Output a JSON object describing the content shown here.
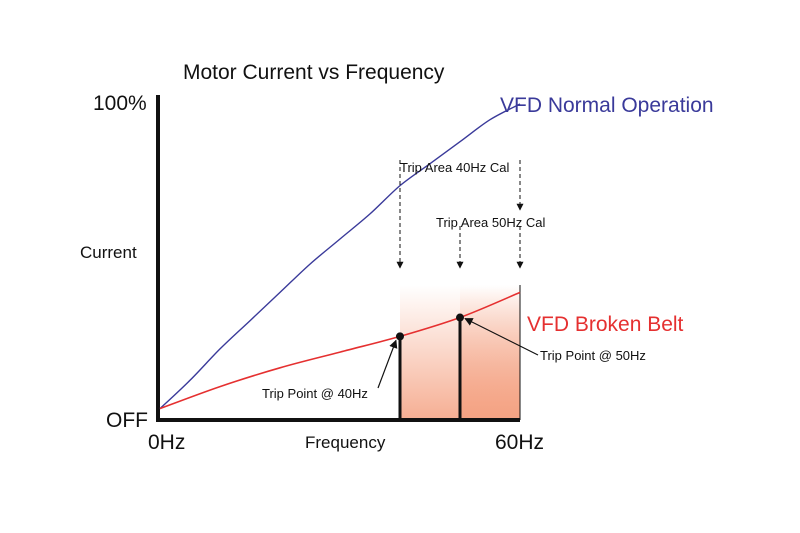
{
  "chart_data": {
    "type": "line",
    "title": "Motor Current vs Frequency",
    "xlabel": "Frequency",
    "ylabel": "Current",
    "x_ticks": [
      "0Hz",
      "60Hz"
    ],
    "y_ticks": [
      "OFF",
      "100%"
    ],
    "xlim": [
      0,
      60
    ],
    "ylim": [
      0,
      100
    ],
    "grid": false,
    "legend": "inline labels at line ends",
    "series": [
      {
        "name": "VFD Normal Operation",
        "color": "#3a3a9a",
        "x": [
          0,
          5,
          10,
          15,
          20,
          25,
          30,
          35,
          40,
          45,
          50,
          55,
          60
        ],
        "y": [
          3,
          12,
          22,
          31,
          40,
          49,
          57,
          65,
          74,
          81,
          88,
          95,
          100
        ]
      },
      {
        "name": "VFD Broken Belt",
        "color": "#e53030",
        "x": [
          0,
          10,
          20,
          30,
          40,
          50,
          60
        ],
        "y": [
          3,
          10,
          16,
          21,
          26,
          32,
          40
        ]
      }
    ],
    "shaded_regions": [
      {
        "label": "Trip Area 40Hz Cal",
        "x_start": 40,
        "x_end": 60
      },
      {
        "label": "Trip Area 50Hz Cal",
        "x_start": 50,
        "x_end": 60
      }
    ],
    "annotations": [
      {
        "label": "Trip Point @ 40Hz",
        "x": 40,
        "y": 26
      },
      {
        "label": "Trip Point @ 50Hz",
        "x": 50,
        "y": 32
      }
    ],
    "colors": {
      "axis": "#111111",
      "shade": "#f4a080"
    }
  }
}
